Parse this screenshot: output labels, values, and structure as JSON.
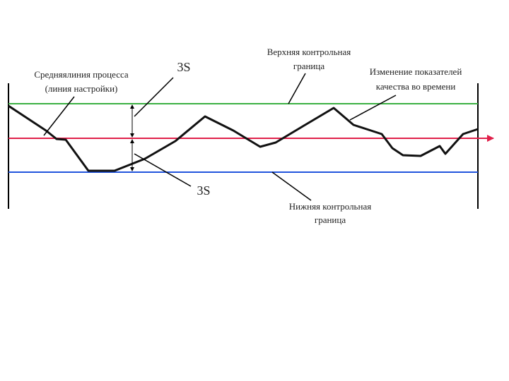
{
  "labels": {
    "mean_line": [
      "Средняялиния процесса",
      "(линия настройки)"
    ],
    "upper_3s": "3S",
    "lower_3s": "3S",
    "upper_limit": [
      "Верхняя контрольная",
      "граница"
    ],
    "quality_change": [
      "Изменение показателей",
      "качества во времени"
    ],
    "lower_limit": [
      "Нижняя контрольная",
      "граница"
    ]
  }
}
